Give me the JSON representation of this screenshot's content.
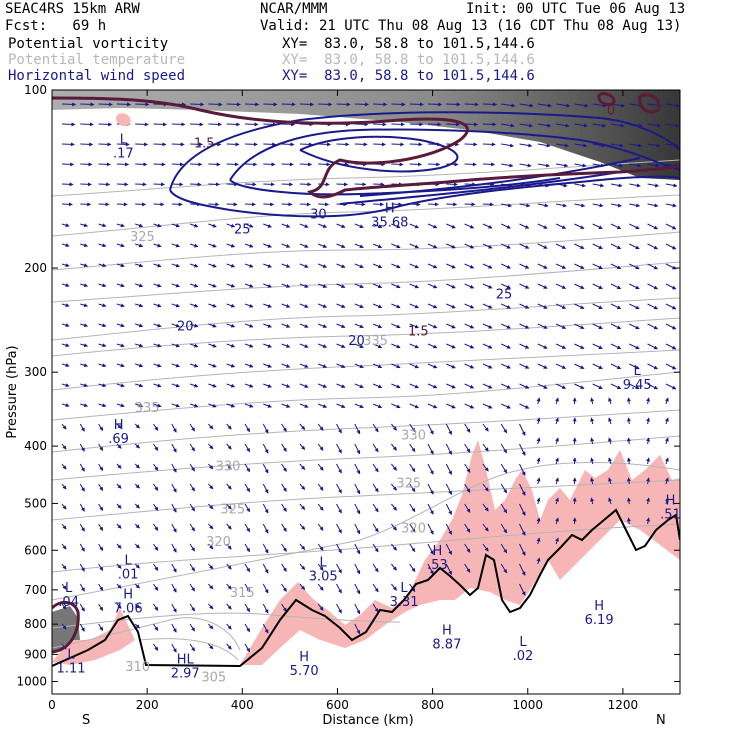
{
  "header": {
    "model": "SEAC4RS 15km ARW",
    "org": "NCAR/MMM",
    "init": "Init: 00 UTC Tue 06 Aug 13",
    "fcst": "Fcst:   69 h",
    "valid": "Valid: 21 UTC Thu 08 Aug 13 (16 CDT Thu 08 Aug 13)",
    "fields": [
      {
        "name": "Potential vorticity",
        "xy": "XY=  83.0, 58.8 to 101.5,144.6"
      },
      {
        "name": "Potential temperature",
        "xy": "XY=  83.0, 58.8 to 101.5,144.6"
      },
      {
        "name": "Horizontal wind speed",
        "xy": "XY=  83.0, 58.8 to 101.5,144.6"
      }
    ]
  },
  "colors": {
    "pv": "#5a1a3a",
    "theta": "#b4b4b4",
    "wind": "#1a1a8c",
    "shade": "#f7b6b6"
  },
  "chart_data": {
    "type": "cross-section",
    "xlabel": "Distance (km)",
    "ylabel": "Pressure (hPa)",
    "xlim": [
      0,
      1320
    ],
    "ylim": [
      1050,
      100
    ],
    "y_scale": "log-pressure",
    "xticks": [
      0,
      200,
      400,
      600,
      800,
      1000,
      1200
    ],
    "yticks": [
      100,
      200,
      300,
      400,
      500,
      600,
      700,
      800,
      900,
      1000
    ],
    "endpoints": {
      "left": "S",
      "right": "N"
    },
    "theta_contours": [
      {
        "label": "335",
        "x": 200,
        "p": 350
      },
      {
        "label": "330",
        "x": 370,
        "p": 440
      },
      {
        "label": "330",
        "x": 760,
        "p": 390
      },
      {
        "label": "325",
        "x": 380,
        "p": 520
      },
      {
        "label": "325",
        "x": 750,
        "p": 470
      },
      {
        "label": "320",
        "x": 350,
        "p": 590
      },
      {
        "label": "320",
        "x": 760,
        "p": 560
      },
      {
        "label": "315",
        "x": 400,
        "p": 720
      },
      {
        "label": "310",
        "x": 180,
        "p": 960
      },
      {
        "label": "305",
        "x": 340,
        "p": 1000
      },
      {
        "label": "335",
        "x": 680,
        "p": 270
      },
      {
        "label": "325",
        "x": 190,
        "p": 180
      }
    ],
    "wind_contours": [
      {
        "label": "20",
        "x": 280,
        "p": 255
      },
      {
        "label": "25",
        "x": 400,
        "p": 175
      },
      {
        "label": "30",
        "x": 560,
        "p": 165
      },
      {
        "label": "25",
        "x": 950,
        "p": 225
      },
      {
        "label": "20",
        "x": 640,
        "p": 270
      }
    ],
    "pv_contours": [
      {
        "label": "1.5",
        "x": 320,
        "p": 125
      },
      {
        "label": "1.5",
        "x": 770,
        "p": 260
      },
      {
        "label": "0",
        "x": 1175,
        "p": 110
      }
    ],
    "extrema": [
      {
        "type": "L",
        "value": ".17",
        "x": 150,
        "p": 130
      },
      {
        "type": "H",
        "value": "35.68",
        "x": 710,
        "p": 170
      },
      {
        "type": "L",
        "value": "9.45",
        "x": 1230,
        "p": 320
      },
      {
        "type": "H",
        "value": ".69",
        "x": 140,
        "p": 395
      },
      {
        "type": "H",
        "value": ".51",
        "x": 1300,
        "p": 530
      },
      {
        "type": "L",
        "value": ".01",
        "x": 160,
        "p": 670
      },
      {
        "type": "L",
        "value": "3.05",
        "x": 570,
        "p": 675
      },
      {
        "type": "H",
        "value": ".53",
        "x": 810,
        "p": 645
      },
      {
        "type": "L",
        "value": ".04",
        "x": 35,
        "p": 745
      },
      {
        "type": "L",
        "value": "3.31",
        "x": 740,
        "p": 745
      },
      {
        "type": "H",
        "value": "7.06",
        "x": 160,
        "p": 765
      },
      {
        "type": "H",
        "value": "6.19",
        "x": 1150,
        "p": 800
      },
      {
        "type": "H",
        "value": "8.87",
        "x": 830,
        "p": 880
      },
      {
        "type": "L",
        "value": ".02",
        "x": 990,
        "p": 920
      },
      {
        "type": "L",
        "value": "1.11",
        "x": 40,
        "p": 965
      },
      {
        "type": "HL",
        "value": "2.97",
        "x": 280,
        "p": 985
      },
      {
        "type": "H",
        "value": "5.70",
        "x": 530,
        "p": 975
      }
    ],
    "grid": false,
    "legend": "none"
  }
}
